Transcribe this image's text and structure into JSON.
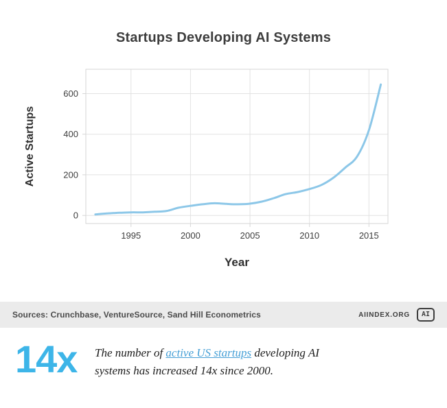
{
  "chart_data": {
    "type": "line",
    "title": "Startups Developing AI Systems",
    "xlabel": "Year",
    "ylabel": "Active Startups",
    "x": [
      1992,
      1993,
      1994,
      1995,
      1996,
      1997,
      1998,
      1999,
      2000,
      2001,
      2002,
      2003,
      2004,
      2005,
      2006,
      2007,
      2008,
      2009,
      2010,
      2011,
      2012,
      2013,
      2014,
      2015,
      2016
    ],
    "values": [
      5,
      10,
      13,
      15,
      15,
      18,
      22,
      38,
      47,
      55,
      60,
      57,
      55,
      58,
      68,
      85,
      105,
      115,
      130,
      150,
      185,
      235,
      290,
      420,
      645
    ],
    "xlim": [
      1991.2,
      2016.6
    ],
    "ylim": [
      -40,
      720
    ],
    "xticks": [
      1995,
      2000,
      2005,
      2010,
      2015
    ],
    "yticks": [
      0,
      200,
      400,
      600
    ],
    "grid": true,
    "legend": "none",
    "line_color": "#8cc7e8",
    "grid_color": "#e2e2e2",
    "axis_color": "#d6d6d6",
    "tick_label_color": "#3d3d3d",
    "axis_label_color": "#2e2e2e"
  },
  "footer": {
    "sources": "Sources: Crunchbase, VentureSource, Sand Hill Econometrics",
    "site": "AIINDEX.ORG",
    "logo_text": "AI"
  },
  "callout": {
    "stat": "14x",
    "text_before": "The number of ",
    "link_text": "active US startups",
    "text_after": " developing AI systems has increased 14x since 2000."
  }
}
